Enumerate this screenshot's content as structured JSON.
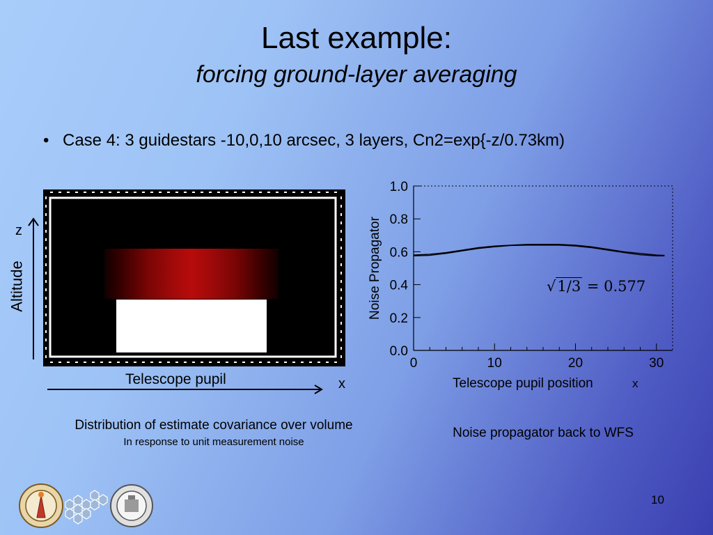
{
  "slide": {
    "title": "Last example:",
    "subtitle": "forcing ground-layer averaging",
    "bullet_symbol": "•",
    "bullet": "Case 4: 3 guidestars -10,0,10 arcsec, 3 layers, Cn2=exp{-z/0.73km)",
    "page_number": "10"
  },
  "left_figure": {
    "z_label": "z",
    "altitude_label": "Altitude",
    "pupil_label": "Telescope pupil",
    "x_label": "x",
    "caption": "Distribution of estimate covariance over volume",
    "subcaption": "In response to unit measurement noise"
  },
  "right_figure": {
    "x_label": "Telescope pupil position",
    "x_axis_symbol": "x",
    "caption": "Noise propagator back to WFS",
    "formula_radicand": "1/3",
    "formula_rhs": "= 0.577"
  },
  "chart_data": {
    "type": "line",
    "title": "",
    "xlabel": "Telescope pupil position",
    "ylabel": "Noise Propagator",
    "xlim": [
      0,
      32
    ],
    "ylim": [
      0.0,
      1.0
    ],
    "x_ticks": [
      "0",
      "10",
      "20",
      "30"
    ],
    "y_ticks": [
      "0.0",
      "0.2",
      "0.4",
      "0.6",
      "0.8",
      "1.0"
    ],
    "series": [
      {
        "x": [
          0,
          2,
          4,
          6,
          8,
          10,
          12,
          14,
          16,
          18,
          20,
          22,
          24,
          26,
          28,
          30,
          31
        ],
        "values": [
          0.58,
          0.585,
          0.595,
          0.61,
          0.625,
          0.635,
          0.64,
          0.645,
          0.645,
          0.645,
          0.64,
          0.63,
          0.615,
          0.6,
          0.59,
          0.58,
          0.578
        ]
      },
      {
        "x": [
          0,
          2,
          4,
          6,
          8,
          10,
          12,
          14,
          16,
          18,
          20,
          22,
          24,
          26,
          28,
          30,
          31
        ],
        "values": [
          0.575,
          0.578,
          0.59,
          0.605,
          0.62,
          0.63,
          0.638,
          0.64,
          0.64,
          0.64,
          0.635,
          0.625,
          0.61,
          0.595,
          0.582,
          0.575,
          0.575
        ]
      }
    ]
  },
  "colors": {
    "line": "#000000",
    "heat_red": "#b00000"
  }
}
